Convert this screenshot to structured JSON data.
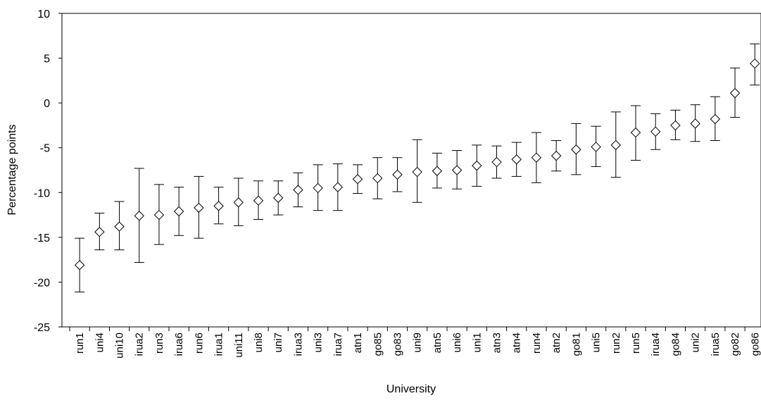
{
  "chart_data": {
    "type": "scatter",
    "title": "",
    "xlabel": "University",
    "ylabel": "Percentage  points",
    "ylim": [
      -25,
      10
    ],
    "yticks": [
      10,
      5,
      0,
      -5,
      -10,
      -15,
      -20,
      -25
    ],
    "grid": false,
    "legend": "none",
    "marker": "diamond",
    "categories": [
      "run1",
      "uni4",
      "uni10",
      "irua2",
      "run3",
      "irua6",
      "run6",
      "irua1",
      "uni11",
      "uni8",
      "uni7",
      "irua3",
      "uni3",
      "irua7",
      "atn1",
      "go85",
      "go83",
      "uni9",
      "atn5",
      "uni6",
      "uni1",
      "atn3",
      "atn4",
      "run4",
      "atn2",
      "go81",
      "uni5",
      "run2",
      "run5",
      "irua4",
      "go84",
      "uni2",
      "irua5",
      "go82",
      "go86"
    ],
    "values": [
      -18.1,
      -14.4,
      -13.8,
      -12.6,
      -12.5,
      -12.1,
      -11.7,
      -11.5,
      -11.1,
      -10.9,
      -10.6,
      -9.7,
      -9.5,
      -9.4,
      -8.5,
      -8.4,
      -8.0,
      -7.7,
      -7.6,
      -7.5,
      -7.0,
      -6.6,
      -6.3,
      -6.1,
      -5.9,
      -5.2,
      -4.9,
      -4.7,
      -3.3,
      -3.2,
      -2.5,
      -2.3,
      -1.8,
      1.1,
      4.4
    ],
    "upper": [
      -15.1,
      -12.3,
      -11.0,
      -7.3,
      -9.1,
      -9.4,
      -8.2,
      -9.4,
      -8.4,
      -8.7,
      -8.7,
      -7.8,
      -6.9,
      -6.8,
      -6.9,
      -6.1,
      -6.1,
      -4.1,
      -5.6,
      -5.3,
      -4.7,
      -4.8,
      -4.4,
      -3.3,
      -4.2,
      -2.3,
      -2.6,
      -1.0,
      -0.3,
      -1.2,
      -0.8,
      -0.2,
      0.7,
      3.9,
      6.6
    ],
    "lower": [
      -21.1,
      -16.4,
      -16.4,
      -17.8,
      -15.8,
      -14.8,
      -15.1,
      -13.5,
      -13.7,
      -13.0,
      -12.5,
      -11.6,
      -12.0,
      -12.0,
      -10.1,
      -10.7,
      -9.9,
      -11.1,
      -9.5,
      -9.6,
      -9.3,
      -8.4,
      -8.2,
      -8.9,
      -7.6,
      -8.0,
      -7.1,
      -8.3,
      -6.4,
      -5.2,
      -4.1,
      -4.3,
      -4.2,
      -1.6,
      2.0
    ]
  }
}
